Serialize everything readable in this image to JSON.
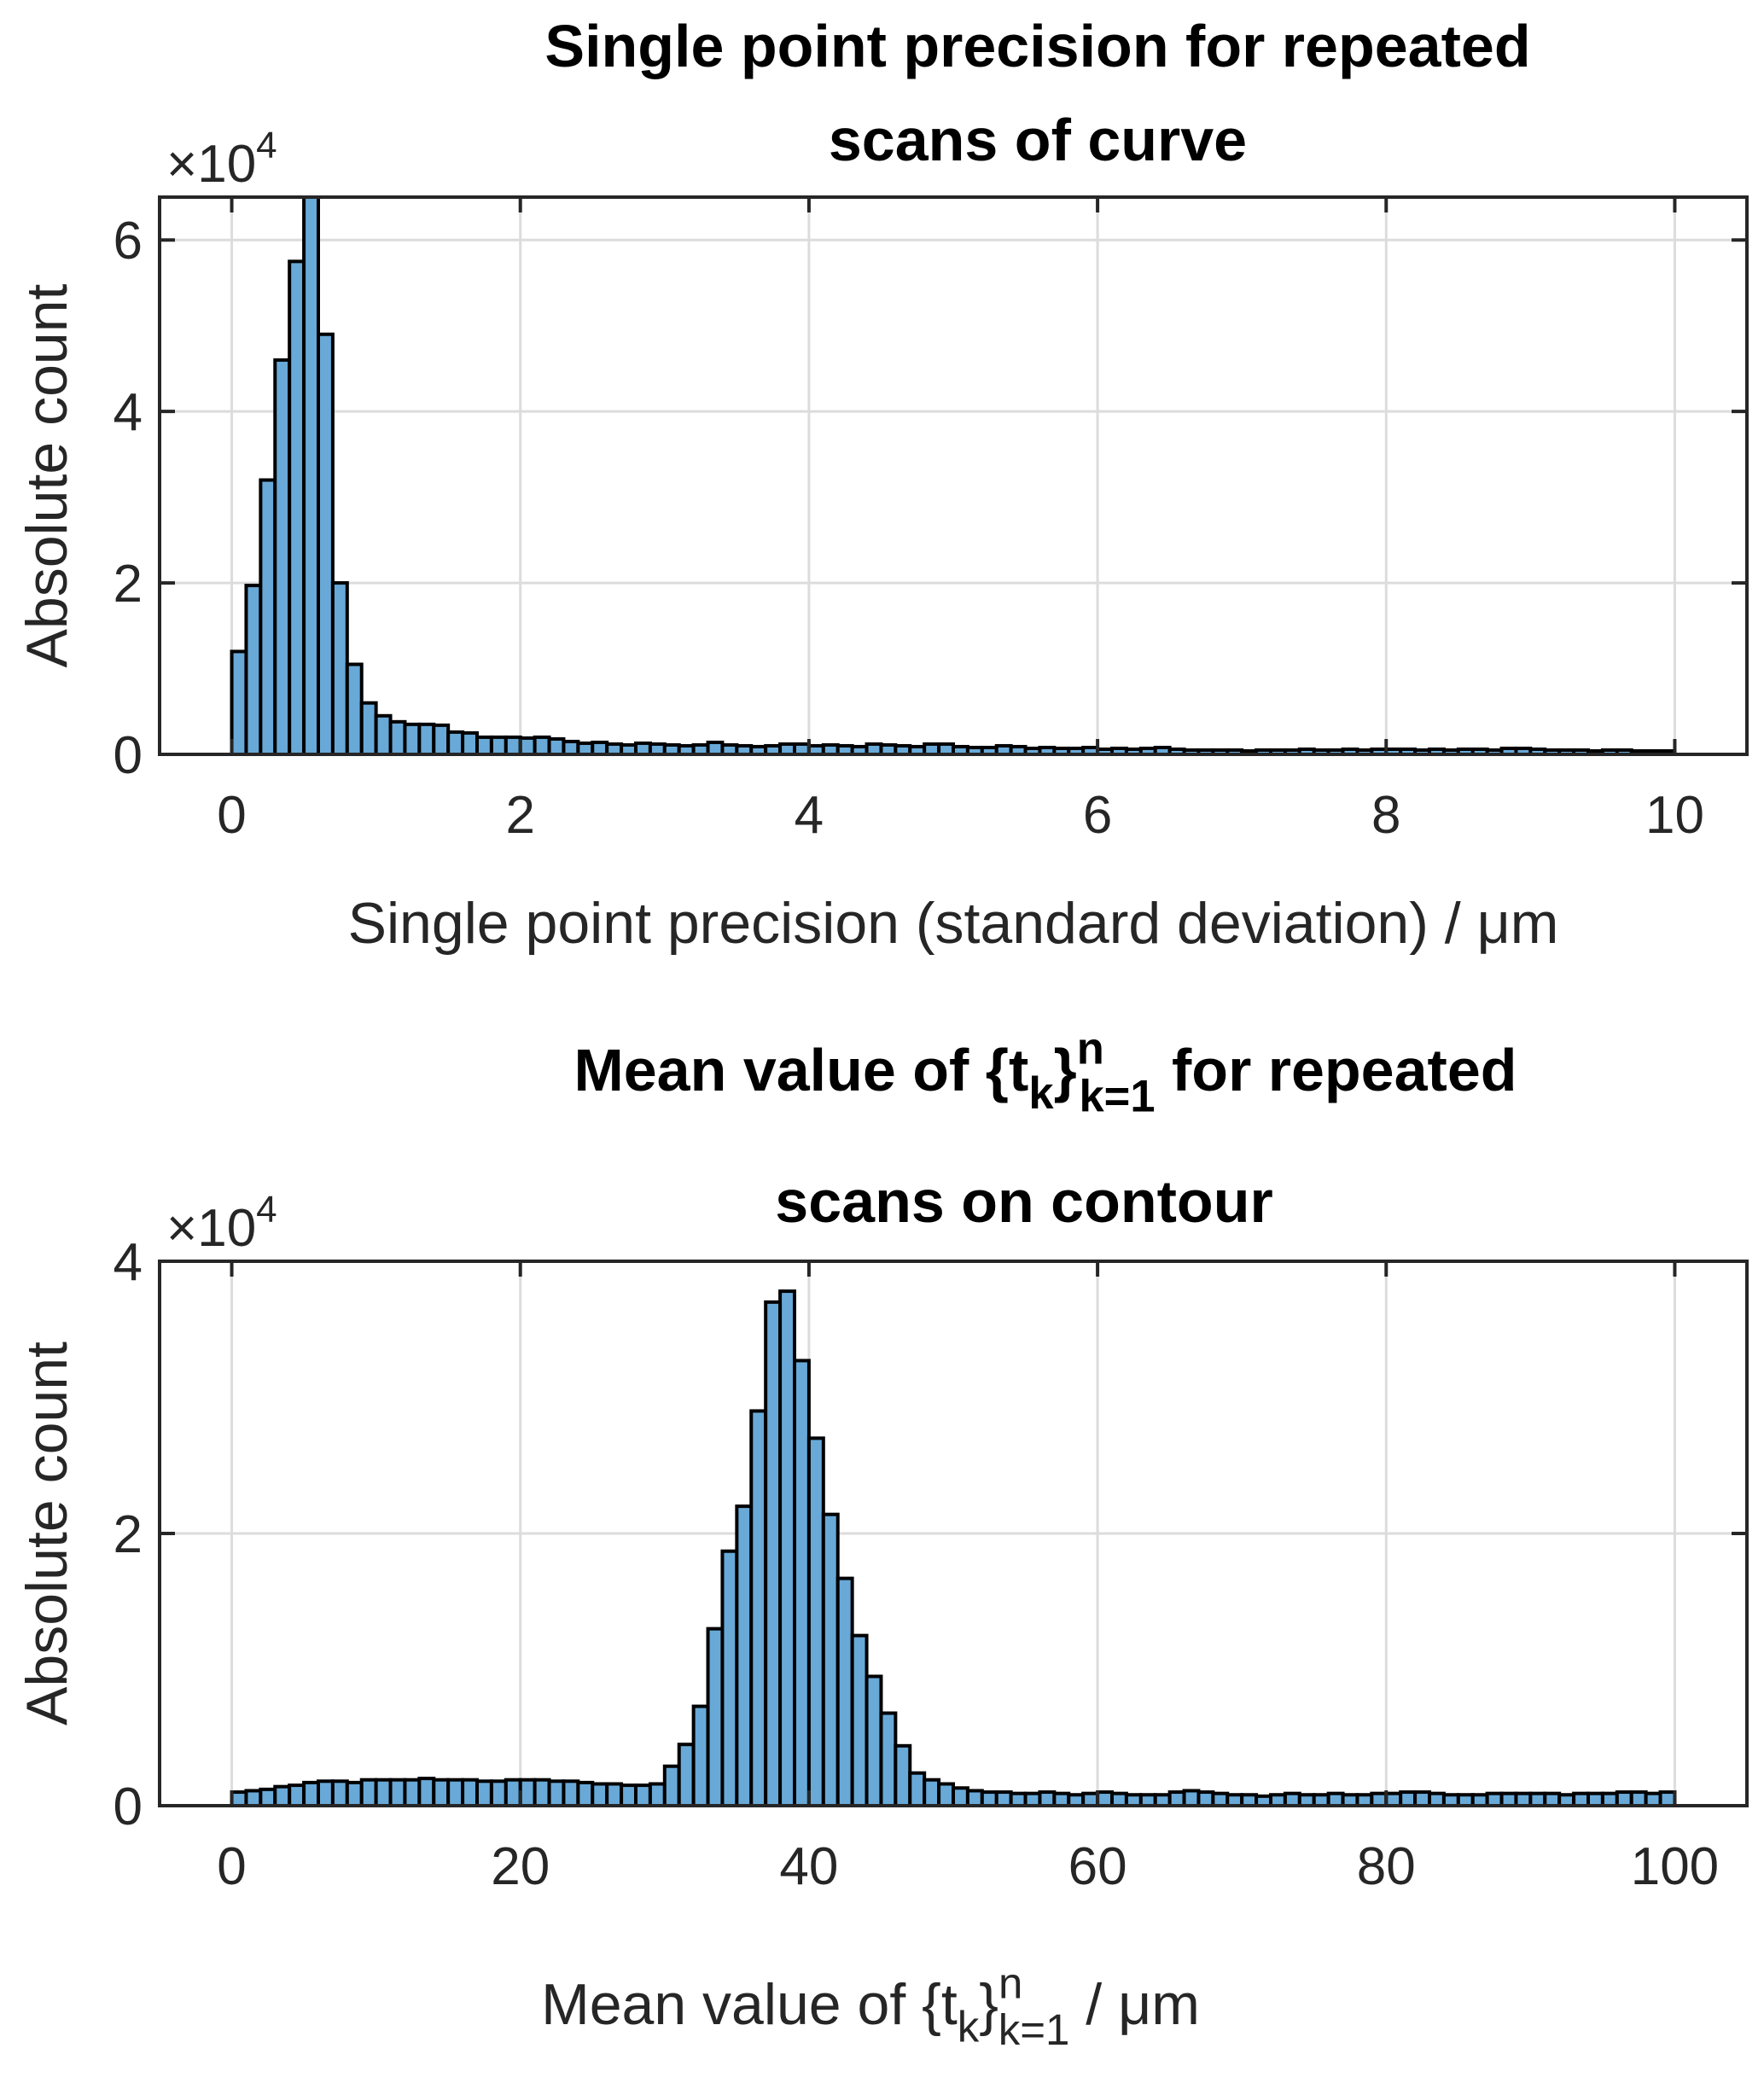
{
  "colors": {
    "bar": "#68a9d8",
    "edge": "#000000",
    "grid": "#dcdcdc",
    "axis": "#262626"
  },
  "chart_data": [
    {
      "type": "bar",
      "title": [
        "Single point precision for repeated",
        "scans of curve"
      ],
      "xlabel": "Single point precision (standard deviation) / μm",
      "ylabel": "Absolute count",
      "y_exponent_label": "×10",
      "y_exponent": "4",
      "xlim": [
        -0.5,
        10.5
      ],
      "ylim": [
        0,
        6.5
      ],
      "xticks": [
        0,
        2,
        4,
        6,
        8,
        10
      ],
      "yticks": [
        0,
        2,
        4,
        6
      ],
      "grid": true,
      "bin_start": 0,
      "bin_width": 0.1,
      "values_x1e4": [
        1.2,
        1.97,
        3.2,
        4.6,
        5.75,
        6.6,
        4.9,
        2.0,
        1.05,
        0.6,
        0.45,
        0.38,
        0.35,
        0.35,
        0.34,
        0.26,
        0.25,
        0.2,
        0.2,
        0.2,
        0.19,
        0.2,
        0.18,
        0.15,
        0.13,
        0.14,
        0.12,
        0.11,
        0.13,
        0.12,
        0.11,
        0.1,
        0.11,
        0.14,
        0.11,
        0.1,
        0.09,
        0.1,
        0.12,
        0.12,
        0.1,
        0.11,
        0.1,
        0.09,
        0.12,
        0.11,
        0.1,
        0.09,
        0.12,
        0.12,
        0.09,
        0.08,
        0.08,
        0.1,
        0.09,
        0.07,
        0.08,
        0.07,
        0.07,
        0.08,
        0.06,
        0.07,
        0.06,
        0.07,
        0.08,
        0.06,
        0.05,
        0.05,
        0.05,
        0.05,
        0.04,
        0.05,
        0.05,
        0.05,
        0.06,
        0.05,
        0.05,
        0.06,
        0.05,
        0.06,
        0.06,
        0.06,
        0.05,
        0.06,
        0.05,
        0.06,
        0.06,
        0.05,
        0.07,
        0.07,
        0.06,
        0.05,
        0.05,
        0.05,
        0.04,
        0.05,
        0.05,
        0.04,
        0.04,
        0.04
      ]
    },
    {
      "type": "bar",
      "title_line1": {
        "before": "Mean value of {t",
        "sub_k": "k",
        "brace": "}",
        "sup": "n",
        "sub": "k=1",
        "after": " for repeated"
      },
      "title_line2": "scans on contour",
      "xlabel": {
        "before": "Mean value of {t",
        "sub_k": "k",
        "brace": "}",
        "sup": "n",
        "sub": "k=1",
        "after": " / μm"
      },
      "ylabel": "Absolute count",
      "y_exponent_label": "×10",
      "y_exponent": "4",
      "xlim": [
        -5,
        105
      ],
      "ylim": [
        0,
        4
      ],
      "xticks": [
        0,
        20,
        40,
        60,
        80,
        100
      ],
      "yticks": [
        0,
        2,
        4
      ],
      "grid": true,
      "bin_start": 0,
      "bin_width": 1,
      "values_x1e4": [
        0.1,
        0.11,
        0.12,
        0.14,
        0.15,
        0.17,
        0.18,
        0.18,
        0.17,
        0.19,
        0.19,
        0.19,
        0.19,
        0.2,
        0.19,
        0.19,
        0.19,
        0.18,
        0.18,
        0.19,
        0.19,
        0.19,
        0.18,
        0.18,
        0.17,
        0.16,
        0.16,
        0.15,
        0.15,
        0.16,
        0.29,
        0.45,
        0.73,
        1.3,
        1.87,
        2.2,
        2.9,
        3.7,
        3.78,
        3.27,
        2.7,
        2.14,
        1.67,
        1.25,
        0.95,
        0.68,
        0.44,
        0.24,
        0.19,
        0.16,
        0.13,
        0.11,
        0.1,
        0.1,
        0.09,
        0.09,
        0.1,
        0.09,
        0.08,
        0.09,
        0.1,
        0.09,
        0.08,
        0.08,
        0.08,
        0.1,
        0.11,
        0.1,
        0.09,
        0.08,
        0.08,
        0.07,
        0.08,
        0.09,
        0.08,
        0.08,
        0.09,
        0.08,
        0.08,
        0.09,
        0.09,
        0.1,
        0.1,
        0.09,
        0.08,
        0.08,
        0.08,
        0.09,
        0.09,
        0.09,
        0.09,
        0.09,
        0.08,
        0.09,
        0.09,
        0.09,
        0.1,
        0.1,
        0.09,
        0.1
      ]
    }
  ]
}
